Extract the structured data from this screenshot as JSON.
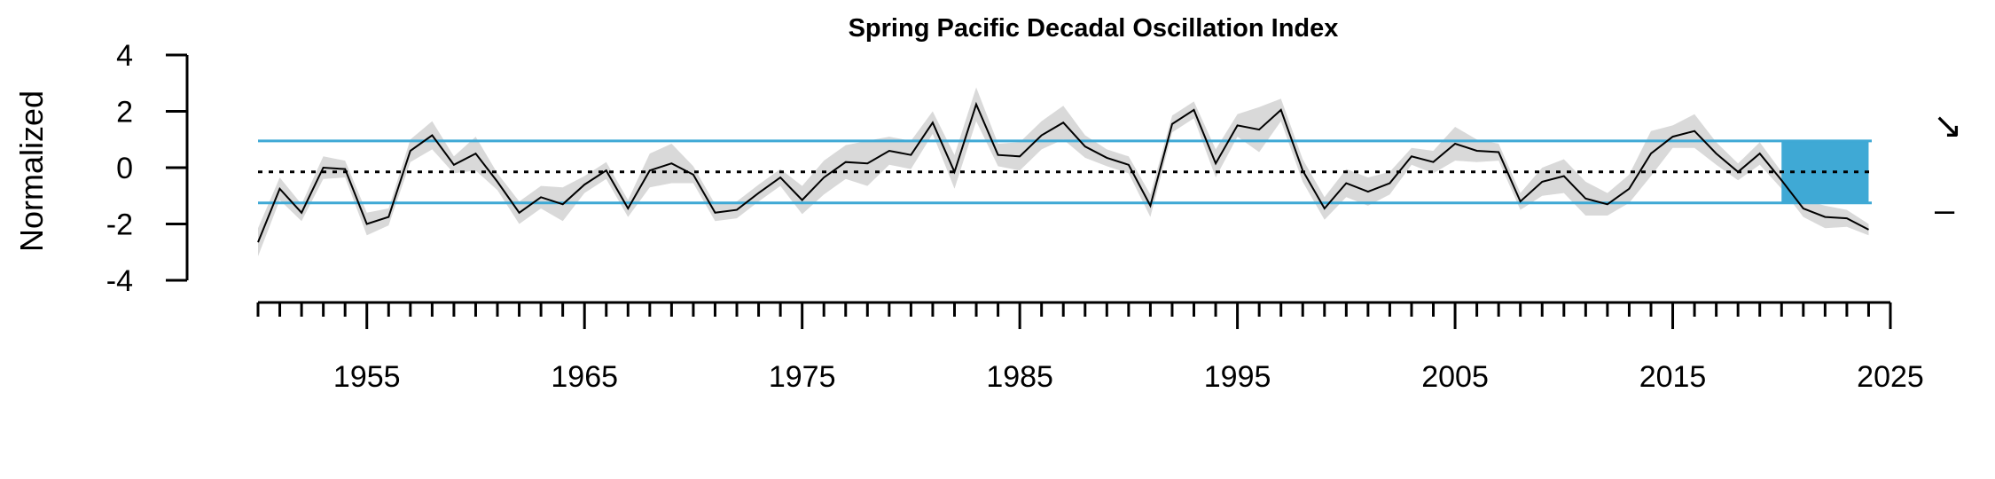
{
  "chart_data": {
    "type": "line",
    "title": "Spring Pacific Decadal Oscillation Index",
    "xlabel": "",
    "ylabel": "Normalized",
    "xlim": [
      1950,
      2025
    ],
    "ylim": [
      -4,
      4
    ],
    "x_tick_labels": [
      "1955",
      "1965",
      "1975",
      "1985",
      "1995",
      "2005",
      "2015",
      "2025"
    ],
    "y_tick_labels": [
      "-4",
      "-2",
      "0",
      "2",
      "4"
    ],
    "mean": -0.15,
    "upper_sd": 0.95,
    "lower_sd": -1.25,
    "shaded_recent_period": [
      2020,
      2024
    ],
    "trend_symbol": "↘",
    "mean_symbol": "–",
    "grid": false,
    "colors": {
      "line": "#000000",
      "ribbon": "#d9d9d9",
      "sd_lines": "#3fa9d5",
      "recent_box": "#3fa9d5",
      "mean_line": "#000000"
    },
    "series": [
      {
        "x": [
          1950,
          1951,
          1952,
          1953,
          1954,
          1955,
          1956,
          1957,
          1958,
          1959,
          1960,
          1961,
          1962,
          1963,
          1964,
          1965,
          1966,
          1967,
          1968,
          1969,
          1970,
          1971,
          1972,
          1973,
          1974,
          1975,
          1976,
          1977,
          1978,
          1979,
          1980,
          1981,
          1982,
          1983,
          1984,
          1985,
          1986,
          1987,
          1988,
          1989,
          1990,
          1991,
          1992,
          1993,
          1994,
          1995,
          1996,
          1997,
          1998,
          1999,
          2000,
          2001,
          2002,
          2003,
          2004,
          2005,
          2006,
          2007,
          2008,
          2009,
          2010,
          2011,
          2012,
          2013,
          2014,
          2015,
          2016,
          2017,
          2018,
          2019,
          2020,
          2021,
          2022,
          2023,
          2024
        ],
        "values": [
          -2.65,
          -0.75,
          -1.6,
          0.0,
          -0.05,
          -2.0,
          -1.75,
          0.6,
          1.15,
          0.1,
          0.5,
          -0.5,
          -1.6,
          -1.05,
          -1.3,
          -0.6,
          -0.1,
          -1.45,
          -0.1,
          0.15,
          -0.25,
          -1.6,
          -1.5,
          -0.9,
          -0.35,
          -1.15,
          -0.35,
          0.2,
          0.15,
          0.6,
          0.45,
          1.6,
          -0.15,
          2.25,
          0.45,
          0.4,
          1.15,
          1.6,
          0.75,
          0.35,
          0.1,
          -1.35,
          1.55,
          2.05,
          0.15,
          1.5,
          1.35,
          2.05,
          -0.1,
          -1.45,
          -0.55,
          -0.85,
          -0.55,
          0.4,
          0.2,
          0.85,
          0.6,
          0.55,
          -1.2,
          -0.5,
          -0.3,
          -1.1,
          -1.3,
          -0.75,
          0.5,
          1.1,
          1.3,
          0.5,
          -0.15,
          0.5,
          -0.45,
          -1.45,
          -1.75,
          -1.8,
          -2.2
        ],
        "ci": [
          0.5,
          0.4,
          0.3,
          0.4,
          0.3,
          0.4,
          0.3,
          0.4,
          0.5,
          0.3,
          0.6,
          0.3,
          0.4,
          0.4,
          0.6,
          0.3,
          0.3,
          0.3,
          0.6,
          0.7,
          0.3,
          0.3,
          0.3,
          0.3,
          0.3,
          0.5,
          0.6,
          0.6,
          0.8,
          0.5,
          0.5,
          0.4,
          0.6,
          0.6,
          0.4,
          0.5,
          0.5,
          0.6,
          0.4,
          0.3,
          0.3,
          0.4,
          0.3,
          0.3,
          0.5,
          0.4,
          0.8,
          0.4,
          0.4,
          0.4,
          0.5,
          0.5,
          0.4,
          0.3,
          0.4,
          0.6,
          0.4,
          0.3,
          0.3,
          0.5,
          0.6,
          0.6,
          0.4,
          0.5,
          0.8,
          0.4,
          0.6,
          0.4,
          0.3,
          0.4,
          0.3,
          0.3,
          0.4,
          0.3,
          0.2
        ]
      }
    ]
  }
}
